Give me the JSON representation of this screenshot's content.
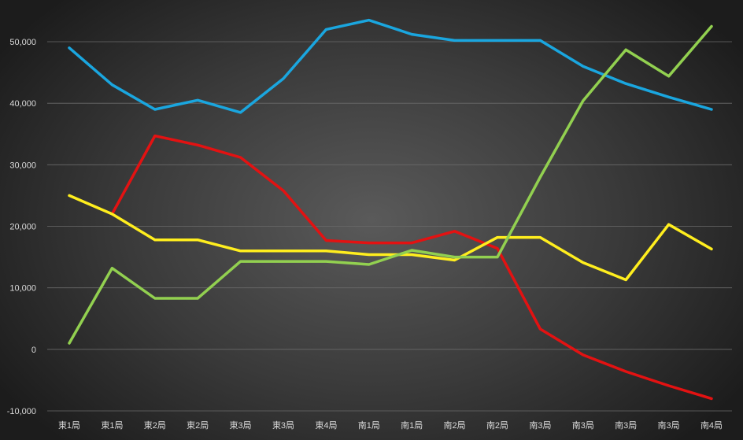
{
  "chart_data": {
    "type": "line",
    "title": "",
    "xlabel": "",
    "ylabel": "",
    "ylim": [
      -10000,
      50000
    ],
    "yticks": [
      -10000,
      0,
      10000,
      20000,
      30000,
      40000,
      50000
    ],
    "ytick_labels": [
      "-10,000",
      "0",
      "10,000",
      "20,000",
      "30,000",
      "40,000",
      "50,000"
    ],
    "grid": true,
    "legend": "none",
    "categories": [
      "東1局",
      "東1局",
      "東2局",
      "東2局",
      "東3局",
      "東3局",
      "東4局",
      "南1局",
      "南1局",
      "南2局",
      "南2局",
      "南3局",
      "南3局",
      "南3局",
      "南3局",
      "南4局"
    ],
    "series": [
      {
        "color": "#1aa6df",
        "values": [
          49000,
          43000,
          39000,
          40500,
          38500,
          44000,
          52000,
          53500,
          51200,
          50200,
          50200,
          50200,
          46000,
          43200,
          41000,
          39000
        ]
      },
      {
        "color": "#e31212",
        "values": [
          null,
          22000,
          34700,
          33200,
          31200,
          25800,
          17700,
          17300,
          17300,
          19200,
          16400,
          3300,
          -900,
          -3600,
          -5900,
          -8000
        ]
      },
      {
        "color": "#ffee1e",
        "values": [
          25000,
          22000,
          17800,
          17800,
          16000,
          16000,
          16000,
          15400,
          15400,
          14500,
          18200,
          18200,
          14100,
          11300,
          20300,
          16300
        ]
      },
      {
        "color": "#92d050",
        "values": [
          1000,
          13200,
          8300,
          8300,
          14300,
          14300,
          14300,
          13800,
          16100,
          15000,
          15000,
          28000,
          40400,
          48700,
          44400,
          52500
        ]
      }
    ]
  }
}
